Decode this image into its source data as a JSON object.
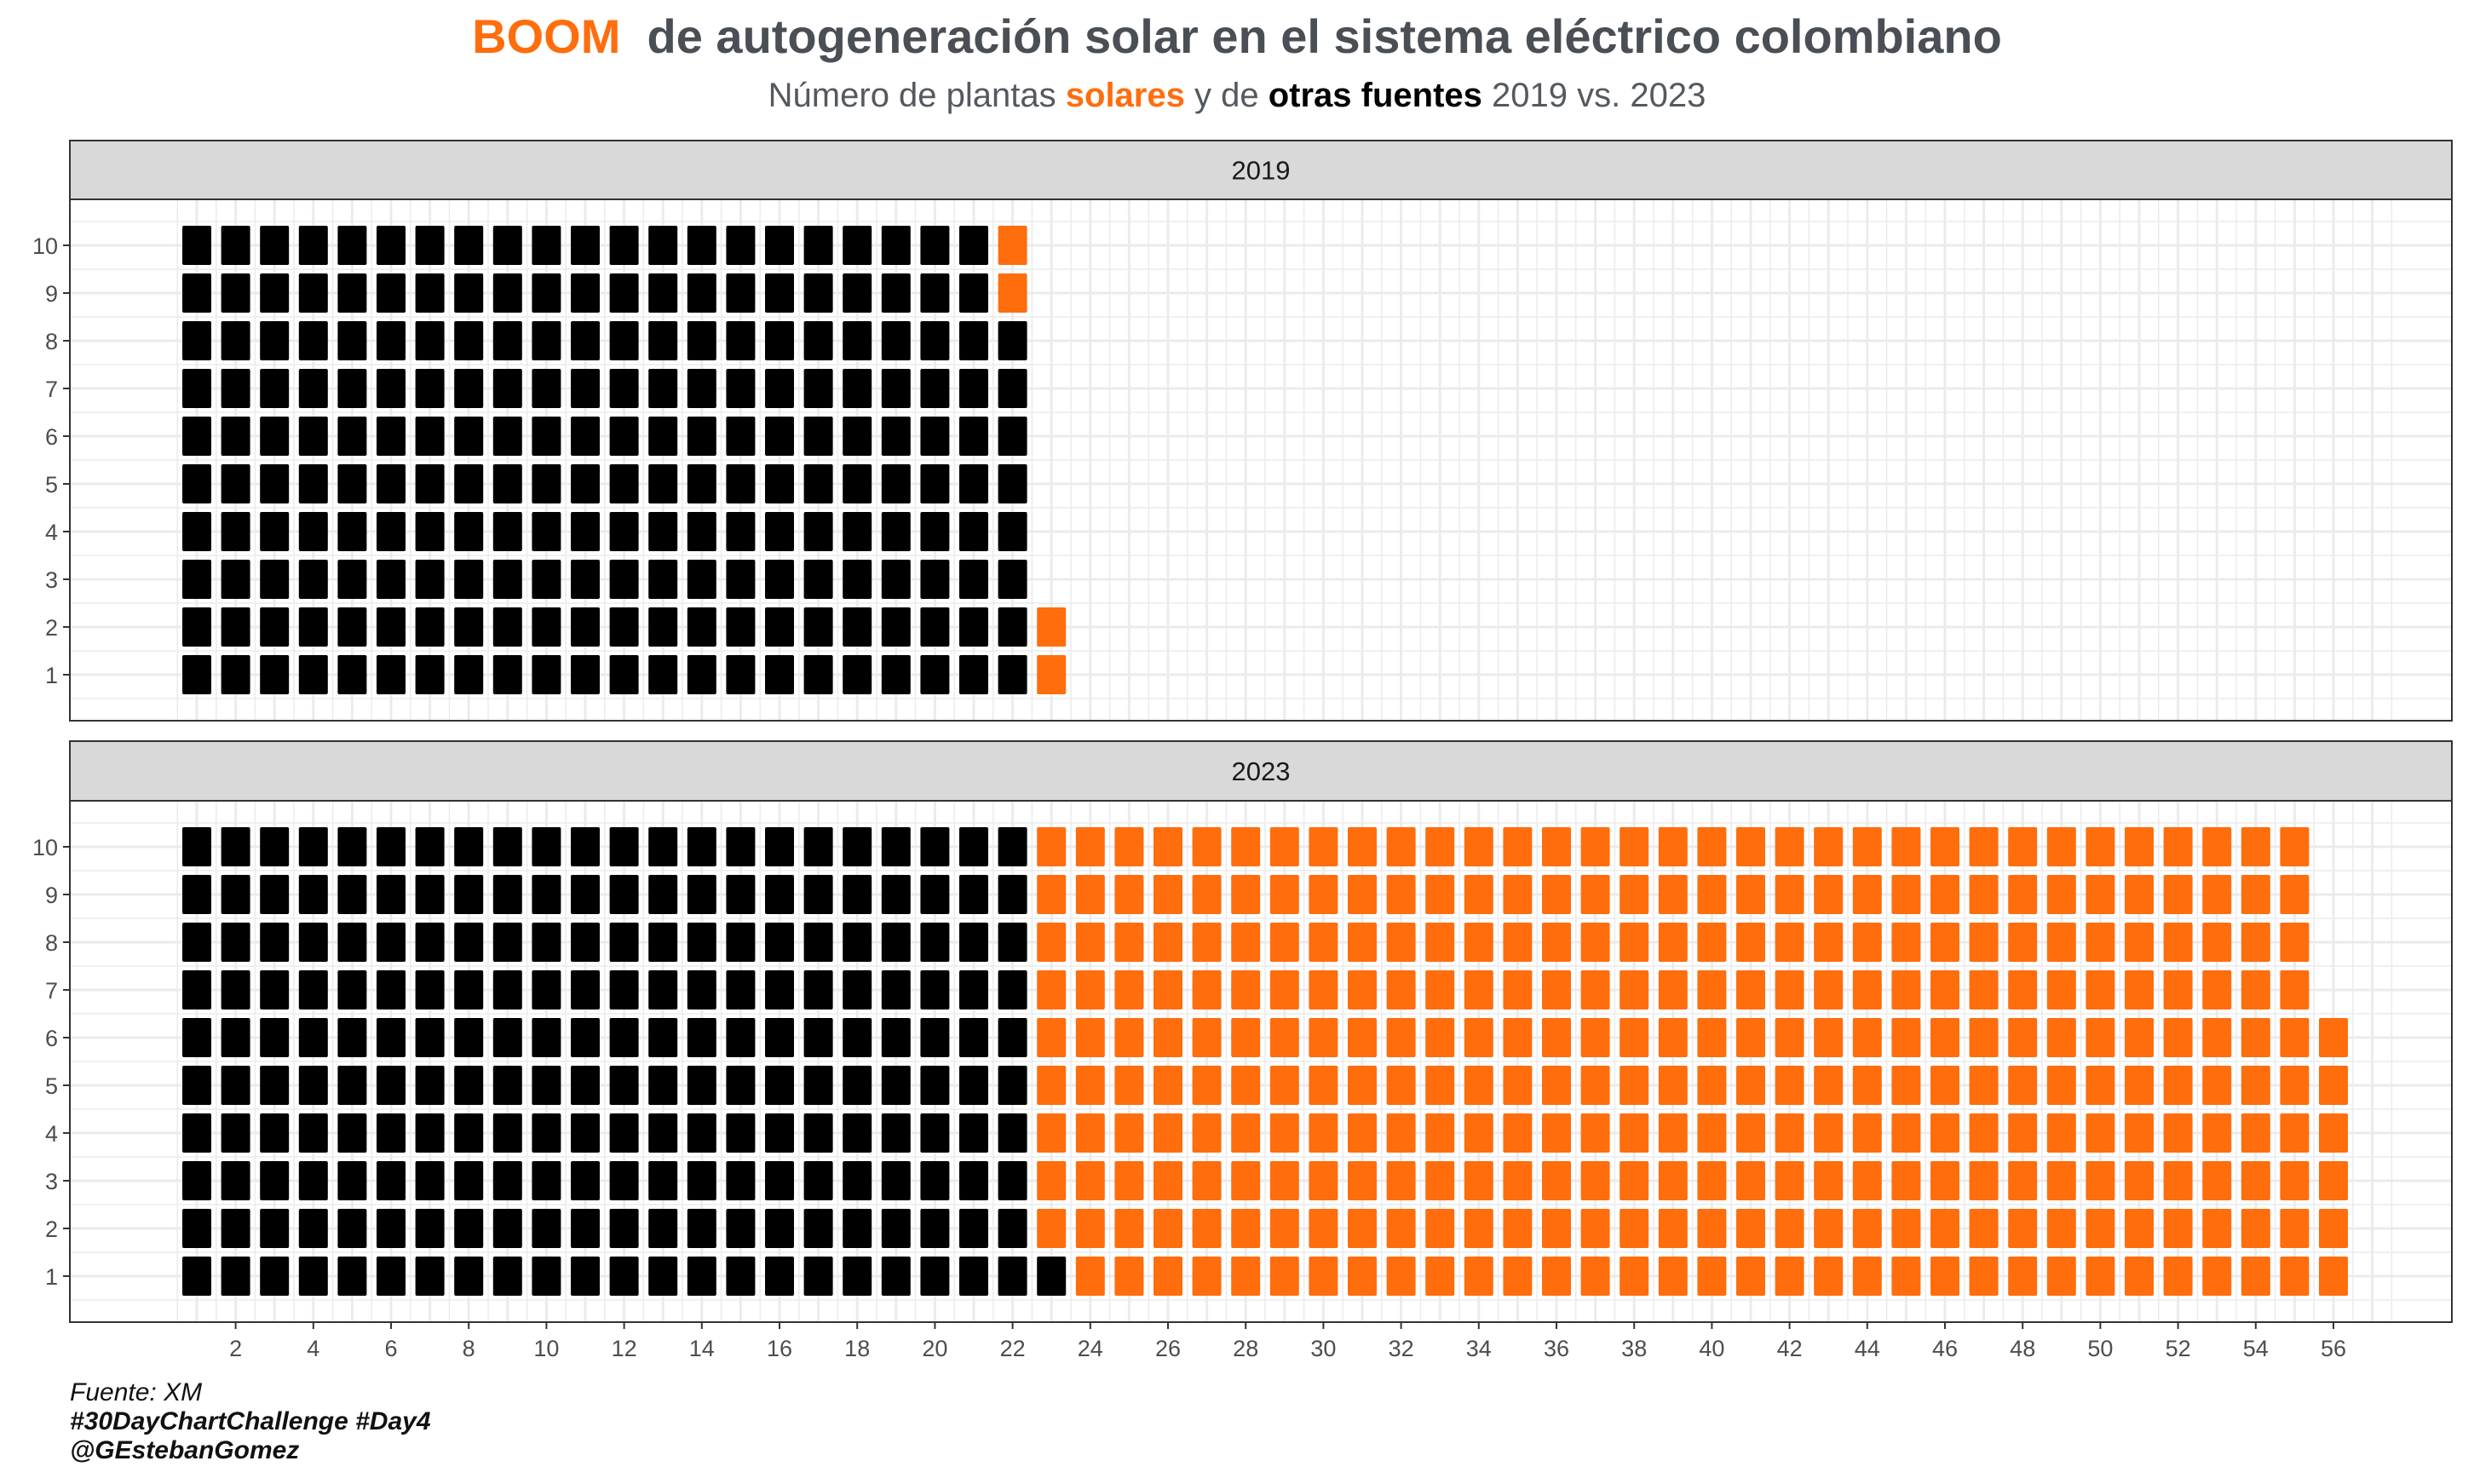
{
  "header": {
    "title_highlight": "BOOM",
    "title_rest": "de autogeneración solar en el sistema eléctrico colombiano",
    "subtitle_part1": "Número de plantas ",
    "subtitle_solar": "solares",
    "subtitle_part2": " y de ",
    "subtitle_other": "otras fuentes",
    "subtitle_part3": " 2019 vs. 2023"
  },
  "caption": {
    "source": "Fuente: XM",
    "hashtags": "#30DayChartChallenge #Day4",
    "author": "@GEstebanGomez"
  },
  "colors": {
    "solar": "#ff6d0d",
    "other": "#000000",
    "strip": "#d9d9d9",
    "grid": "#ebebeb"
  },
  "chart_data": {
    "type": "waffle",
    "x_range": [
      0,
      58
    ],
    "y_range": [
      0,
      11
    ],
    "x_ticks": [
      2,
      4,
      6,
      8,
      10,
      12,
      14,
      16,
      18,
      20,
      22,
      24,
      26,
      28,
      30,
      32,
      34,
      36,
      38,
      40,
      42,
      44,
      46,
      48,
      50,
      52,
      54,
      56
    ],
    "y_ticks": [
      1,
      2,
      3,
      4,
      5,
      6,
      7,
      8,
      9,
      10
    ],
    "legend": "none",
    "grid": true,
    "series": [
      "otras fuentes",
      "solares"
    ],
    "facets": [
      {
        "label": "2019",
        "other_count": 218,
        "solar_count": 4
      },
      {
        "label": "2023",
        "other_count": 221,
        "solar_count": 335
      }
    ]
  }
}
